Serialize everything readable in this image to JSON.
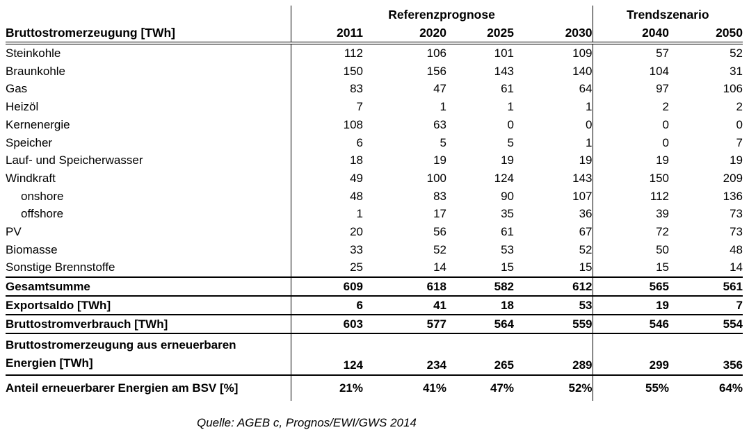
{
  "table": {
    "title_header": "Bruttostromerzeugung [TWh]",
    "scenario_groups": [
      {
        "label": "Referenzprognose",
        "span": 4
      },
      {
        "label": "Trendszenario",
        "span": 2
      }
    ],
    "years": [
      "2011",
      "2020",
      "2025",
      "2030",
      "2040",
      "2050"
    ],
    "rows": [
      {
        "label": "Steinkohle",
        "indent": false,
        "values": [
          "112",
          "106",
          "101",
          "109",
          "57",
          "52"
        ]
      },
      {
        "label": "Braunkohle",
        "indent": false,
        "values": [
          "150",
          "156",
          "143",
          "140",
          "104",
          "31"
        ]
      },
      {
        "label": "Gas",
        "indent": false,
        "values": [
          "83",
          "47",
          "61",
          "64",
          "97",
          "106"
        ]
      },
      {
        "label": "Heizöl",
        "indent": false,
        "values": [
          "7",
          "1",
          "1",
          "1",
          "2",
          "2"
        ]
      },
      {
        "label": "Kernenergie",
        "indent": false,
        "values": [
          "108",
          "63",
          "0",
          "0",
          "0",
          "0"
        ]
      },
      {
        "label": "Speicher",
        "indent": false,
        "values": [
          "6",
          "5",
          "5",
          "1",
          "0",
          "7"
        ]
      },
      {
        "label": "Lauf- und Speicherwasser",
        "indent": false,
        "values": [
          "18",
          "19",
          "19",
          "19",
          "19",
          "19"
        ]
      },
      {
        "label": "Windkraft",
        "indent": false,
        "values": [
          "49",
          "100",
          "124",
          "143",
          "150",
          "209"
        ]
      },
      {
        "label": "onshore",
        "indent": true,
        "values": [
          "48",
          "83",
          "90",
          "107",
          "112",
          "136"
        ]
      },
      {
        "label": "offshore",
        "indent": true,
        "values": [
          "1",
          "17",
          "35",
          "36",
          "39",
          "73"
        ]
      },
      {
        "label": "PV",
        "indent": false,
        "values": [
          "20",
          "56",
          "61",
          "67",
          "72",
          "73"
        ]
      },
      {
        "label": "Biomasse",
        "indent": false,
        "values": [
          "33",
          "52",
          "53",
          "52",
          "50",
          "48"
        ]
      },
      {
        "label": "Sonstige Brennstoffe",
        "indent": false,
        "values": [
          "25",
          "14",
          "15",
          "15",
          "15",
          "14"
        ]
      }
    ],
    "summary_rows": [
      {
        "label": "Gesamtsumme",
        "values": [
          "609",
          "618",
          "582",
          "612",
          "565",
          "561"
        ],
        "two_line": false
      },
      {
        "label": "Exportsaldo [TWh]",
        "values": [
          "6",
          "41",
          "18",
          "53",
          "19",
          "7"
        ],
        "two_line": false
      },
      {
        "label": "Bruttostromverbrauch [TWh]",
        "values": [
          "603",
          "577",
          "564",
          "559",
          "546",
          "554"
        ],
        "two_line": false
      },
      {
        "label_lines": [
          "Bruttostromerzeugung aus erneuerbaren",
          "Energien [TWh]"
        ],
        "values": [
          "124",
          "234",
          "265",
          "289",
          "299",
          "356"
        ],
        "two_line": true
      },
      {
        "label": "Anteil erneuerbarer Energien am BSV [%]",
        "values": [
          "21%",
          "41%",
          "47%",
          "52%",
          "55%",
          "64%"
        ],
        "two_line": false,
        "last": true
      }
    ]
  },
  "source_note": "Quelle: AGEB c, Prognos/EWI/GWS 2014"
}
